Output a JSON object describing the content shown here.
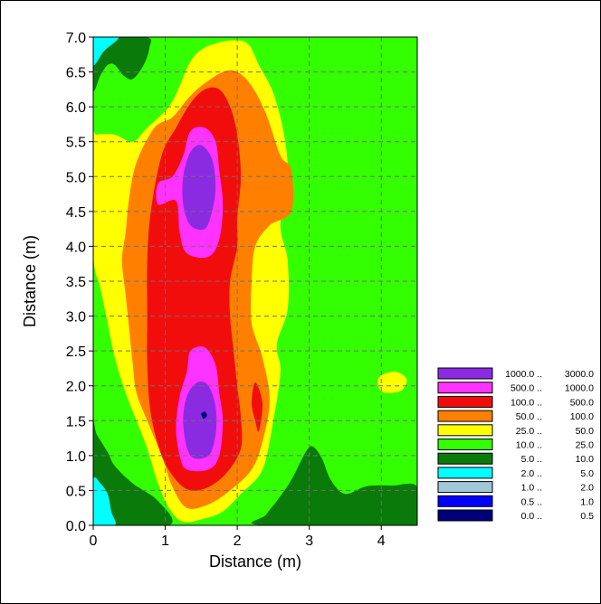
{
  "chart_data": {
    "type": "heatmap",
    "title": "",
    "xlabel": "Distance (m)",
    "ylabel": "Distance (m)",
    "xlim": [
      0,
      4.5
    ],
    "ylim": [
      0,
      7
    ],
    "x_ticks": [
      "0",
      "1",
      "2",
      "3",
      "4"
    ],
    "y_ticks": [
      "0.0",
      "0.5",
      "1.0",
      "1.5",
      "2.0",
      "2.5",
      "3.0",
      "3.5",
      "4.0",
      "4.5",
      "5.0",
      "5.5",
      "6.0",
      "6.5",
      "7.0"
    ],
    "grid": true,
    "legend_position": "bottom-right",
    "legend": [
      {
        "range": "1000.0 .. 3000.0",
        "color": "#8a2be2"
      },
      {
        "range": "500.0 .. 1000.0",
        "color": "#ff33ff"
      },
      {
        "range": "100.0 .. 500.0",
        "color": "#f20d0d"
      },
      {
        "range": "50.0 .. 100.0",
        "color": "#ff8000"
      },
      {
        "range": "25.0 .. 50.0",
        "color": "#ffff00"
      },
      {
        "range": "10.0 .. 25.0",
        "color": "#33ff00"
      },
      {
        "range": "5.0 .. 10.0",
        "color": "#0a7a0a"
      },
      {
        "range": "2.0 .. 5.0",
        "color": "#00ffff"
      },
      {
        "range": "1.0 .. 2.0",
        "color": "#a0c8d8"
      },
      {
        "range": "0.5 .. 1.0",
        "color": "#0000ff"
      },
      {
        "range": "0.0 .. 0.5",
        "color": "#00007a"
      }
    ],
    "contours": [
      {
        "level": "10.0 .. 25.0",
        "color": "#33ff00",
        "points": [
          [
            0,
            0
          ],
          [
            4.5,
            0
          ],
          [
            4.5,
            7
          ],
          [
            0,
            7
          ]
        ]
      },
      {
        "level": "5.0 .. 10.0",
        "color": "#0a7a0a",
        "points": [
          [
            0,
            0
          ],
          [
            1.05,
            0
          ],
          [
            0.9,
            0.35
          ],
          [
            0.55,
            0.6
          ],
          [
            0.3,
            0.85
          ],
          [
            0.2,
            1.05
          ],
          [
            0.05,
            1.3
          ],
          [
            0,
            1.4
          ]
        ]
      },
      {
        "level": "5.0 .. 10.0",
        "color": "#0a7a0a",
        "points": [
          [
            2.35,
            0
          ],
          [
            4.5,
            0
          ],
          [
            4.5,
            0.55
          ],
          [
            4.15,
            0.57
          ],
          [
            3.8,
            0.56
          ],
          [
            3.5,
            0.45
          ],
          [
            3.3,
            0.65
          ],
          [
            3.18,
            0.95
          ],
          [
            3.05,
            1.13
          ],
          [
            2.95,
            1.05
          ],
          [
            2.75,
            0.65
          ],
          [
            2.55,
            0.35
          ],
          [
            2.4,
            0.15
          ]
        ]
      },
      {
        "level": "5.0 .. 10.0",
        "color": "#0a7a0a",
        "points": [
          [
            0,
            6.25
          ],
          [
            0.1,
            6.45
          ],
          [
            0.2,
            6.6
          ],
          [
            0.3,
            6.6
          ],
          [
            0.42,
            6.45
          ],
          [
            0.55,
            6.4
          ],
          [
            0.7,
            6.6
          ],
          [
            0.78,
            6.85
          ],
          [
            0.73,
            7
          ],
          [
            0,
            7
          ]
        ]
      },
      {
        "level": "2.0 .. 5.0",
        "color": "#00ffff",
        "points": [
          [
            0,
            0
          ],
          [
            0.3,
            0
          ],
          [
            0.25,
            0.2
          ],
          [
            0.2,
            0.45
          ],
          [
            0.1,
            0.6
          ],
          [
            0,
            0.65
          ]
        ]
      },
      {
        "level": "2.0 .. 5.0",
        "color": "#00ffff",
        "points": [
          [
            0,
            6.6
          ],
          [
            0.15,
            6.8
          ],
          [
            0.35,
            7
          ],
          [
            0,
            7
          ]
        ]
      },
      {
        "level": "25.0 .. 50.0",
        "color": "#ffff00",
        "points": [
          [
            1.25,
            0.05
          ],
          [
            1.55,
            0.1
          ],
          [
            1.8,
            0.2
          ],
          [
            2.05,
            0.45
          ],
          [
            2.35,
            0.8
          ],
          [
            2.5,
            1.5
          ],
          [
            2.6,
            2.2
          ],
          [
            2.55,
            2.6
          ],
          [
            2.7,
            3.1
          ],
          [
            2.7,
            3.8
          ],
          [
            2.6,
            4.3
          ],
          [
            2.7,
            5.0
          ],
          [
            2.65,
            5.6
          ],
          [
            2.5,
            6.2
          ],
          [
            2.3,
            6.6
          ],
          [
            2.15,
            6.9
          ],
          [
            1.9,
            6.95
          ],
          [
            1.55,
            6.85
          ],
          [
            1.35,
            6.65
          ],
          [
            1.2,
            6.3
          ],
          [
            1.05,
            6.0
          ],
          [
            0.75,
            5.7
          ],
          [
            0.55,
            5.5
          ],
          [
            0.3,
            5.6
          ],
          [
            0.05,
            5.6
          ],
          [
            0,
            5.5
          ],
          [
            0,
            3.9
          ],
          [
            0.1,
            3.4
          ],
          [
            0.2,
            2.9
          ],
          [
            0.3,
            2.4
          ],
          [
            0.45,
            1.9
          ],
          [
            0.6,
            1.5
          ],
          [
            0.75,
            1.1
          ],
          [
            0.9,
            0.6
          ],
          [
            1.05,
            0.25
          ]
        ]
      },
      {
        "level": "25.0 .. 50.0",
        "color": "#ffff00",
        "points": [
          [
            3.95,
            2.05
          ],
          [
            4.0,
            2.15
          ],
          [
            4.2,
            2.2
          ],
          [
            4.35,
            2.1
          ],
          [
            4.3,
            1.95
          ],
          [
            4.15,
            1.9
          ],
          [
            4.0,
            1.92
          ]
        ]
      },
      {
        "level": "50.0 .. 100.0",
        "color": "#ff8000",
        "points": [
          [
            1.3,
            0.25
          ],
          [
            1.6,
            0.3
          ],
          [
            1.9,
            0.5
          ],
          [
            2.2,
            0.8
          ],
          [
            2.35,
            1.2
          ],
          [
            2.45,
            1.8
          ],
          [
            2.35,
            2.4
          ],
          [
            2.2,
            2.9
          ],
          [
            2.2,
            3.5
          ],
          [
            2.25,
            4.0
          ],
          [
            2.45,
            4.3
          ],
          [
            2.75,
            4.5
          ],
          [
            2.75,
            5.1
          ],
          [
            2.6,
            5.3
          ],
          [
            2.4,
            5.9
          ],
          [
            2.2,
            6.3
          ],
          [
            2.0,
            6.5
          ],
          [
            1.8,
            6.5
          ],
          [
            1.5,
            6.3
          ],
          [
            1.3,
            6.1
          ],
          [
            1.1,
            5.85
          ],
          [
            0.85,
            5.7
          ],
          [
            0.6,
            5.2
          ],
          [
            0.5,
            4.7
          ],
          [
            0.45,
            4.2
          ],
          [
            0.4,
            3.8
          ],
          [
            0.45,
            3.3
          ],
          [
            0.5,
            2.8
          ],
          [
            0.55,
            2.3
          ],
          [
            0.6,
            1.9
          ],
          [
            0.75,
            1.5
          ],
          [
            0.95,
            1.0
          ],
          [
            1.1,
            0.55
          ]
        ]
      },
      {
        "level": "100.0 .. 500.0",
        "color": "#f20d0d",
        "points": [
          [
            1.35,
            0.5
          ],
          [
            1.6,
            0.55
          ],
          [
            1.85,
            0.75
          ],
          [
            2.05,
            1.1
          ],
          [
            2.05,
            1.55
          ],
          [
            2.0,
            2.0
          ],
          [
            1.95,
            2.5
          ],
          [
            1.9,
            3.0
          ],
          [
            1.9,
            3.5
          ],
          [
            2.0,
            4.0
          ],
          [
            2.0,
            4.4
          ],
          [
            2.05,
            5.0
          ],
          [
            2.0,
            5.6
          ],
          [
            1.9,
            6.0
          ],
          [
            1.75,
            6.25
          ],
          [
            1.55,
            6.25
          ],
          [
            1.35,
            6.05
          ],
          [
            1.15,
            5.7
          ],
          [
            0.95,
            5.3
          ],
          [
            0.8,
            4.5
          ],
          [
            0.75,
            3.8
          ],
          [
            0.75,
            3.0
          ],
          [
            0.75,
            2.3
          ],
          [
            0.8,
            1.6
          ],
          [
            0.95,
            1.0
          ],
          [
            1.15,
            0.65
          ]
        ]
      },
      {
        "level": "100.0 .. 500.0",
        "color": "#f20d0d",
        "points": [
          [
            2.2,
            1.75
          ],
          [
            2.25,
            2.05
          ],
          [
            2.35,
            1.75
          ],
          [
            2.3,
            1.35
          ],
          [
            2.25,
            1.5
          ]
        ]
      },
      {
        "level": "500.0 .. 1000.0",
        "color": "#ff33ff",
        "points": [
          [
            1.3,
            3.9
          ],
          [
            1.6,
            3.85
          ],
          [
            1.75,
            4.1
          ],
          [
            1.8,
            4.6
          ],
          [
            1.75,
            5.1
          ],
          [
            1.7,
            5.5
          ],
          [
            1.55,
            5.7
          ],
          [
            1.35,
            5.65
          ],
          [
            1.25,
            5.3
          ],
          [
            1.1,
            5.0
          ],
          [
            0.9,
            4.9
          ],
          [
            0.9,
            4.6
          ],
          [
            1.15,
            4.65
          ],
          [
            1.2,
            4.2
          ]
        ]
      },
      {
        "level": "500.0 .. 1000.0",
        "color": "#ff33ff",
        "points": [
          [
            1.3,
            0.8
          ],
          [
            1.6,
            0.8
          ],
          [
            1.75,
            1.0
          ],
          [
            1.8,
            1.5
          ],
          [
            1.75,
            1.9
          ],
          [
            1.7,
            2.3
          ],
          [
            1.55,
            2.55
          ],
          [
            1.35,
            2.5
          ],
          [
            1.3,
            2.2
          ],
          [
            1.2,
            1.85
          ],
          [
            1.15,
            1.4
          ],
          [
            1.2,
            1.0
          ]
        ]
      },
      {
        "level": "1000.0 .. 3000.0",
        "color": "#8a2be2",
        "points": [
          [
            1.35,
            4.3
          ],
          [
            1.55,
            4.25
          ],
          [
            1.65,
            4.5
          ],
          [
            1.7,
            4.85
          ],
          [
            1.65,
            5.25
          ],
          [
            1.5,
            5.45
          ],
          [
            1.35,
            5.35
          ],
          [
            1.25,
            5.0
          ],
          [
            1.25,
            4.6
          ]
        ]
      },
      {
        "level": "1000.0 .. 3000.0",
        "color": "#8a2be2",
        "points": [
          [
            1.35,
            1.0
          ],
          [
            1.6,
            1.0
          ],
          [
            1.7,
            1.3
          ],
          [
            1.7,
            1.7
          ],
          [
            1.6,
            2.0
          ],
          [
            1.45,
            2.05
          ],
          [
            1.3,
            1.85
          ],
          [
            1.25,
            1.45
          ]
        ]
      },
      {
        "level": "0.0 .. 0.5",
        "color": "#00007a",
        "points": [
          [
            1.53,
            1.53
          ],
          [
            1.58,
            1.57
          ],
          [
            1.55,
            1.63
          ],
          [
            1.5,
            1.6
          ]
        ]
      }
    ]
  }
}
